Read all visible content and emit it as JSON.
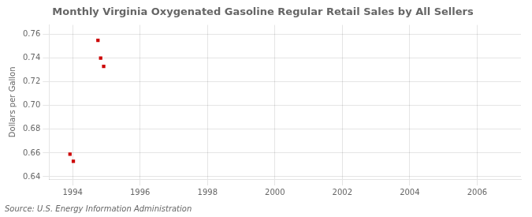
{
  "chart_data": {
    "type": "scatter",
    "title": "Monthly Virginia Oxygenated Gasoline Regular Retail Sales by All Sellers",
    "ylabel": "Dollars per Gallon",
    "annotations": [
      "Source: U.S. Energy Information Administration"
    ],
    "x": [
      1993.92,
      1994.02,
      1994.75,
      1994.83,
      1994.92
    ],
    "values": [
      0.659,
      0.653,
      0.755,
      0.74,
      0.733
    ],
    "color": "#cc0000",
    "marker": "square",
    "xlim": [
      1993.3,
      2007.3
    ],
    "ylim": [
      0.638,
      0.768
    ],
    "xticks": [
      1994,
      1996,
      1998,
      2000,
      2002,
      2004,
      2006
    ],
    "yticks": [
      0.64,
      0.66,
      0.68,
      {
        "value": 0.7,
        "label": "0.70"
      },
      0.72,
      0.74,
      0.76
    ],
    "grid": true
  }
}
